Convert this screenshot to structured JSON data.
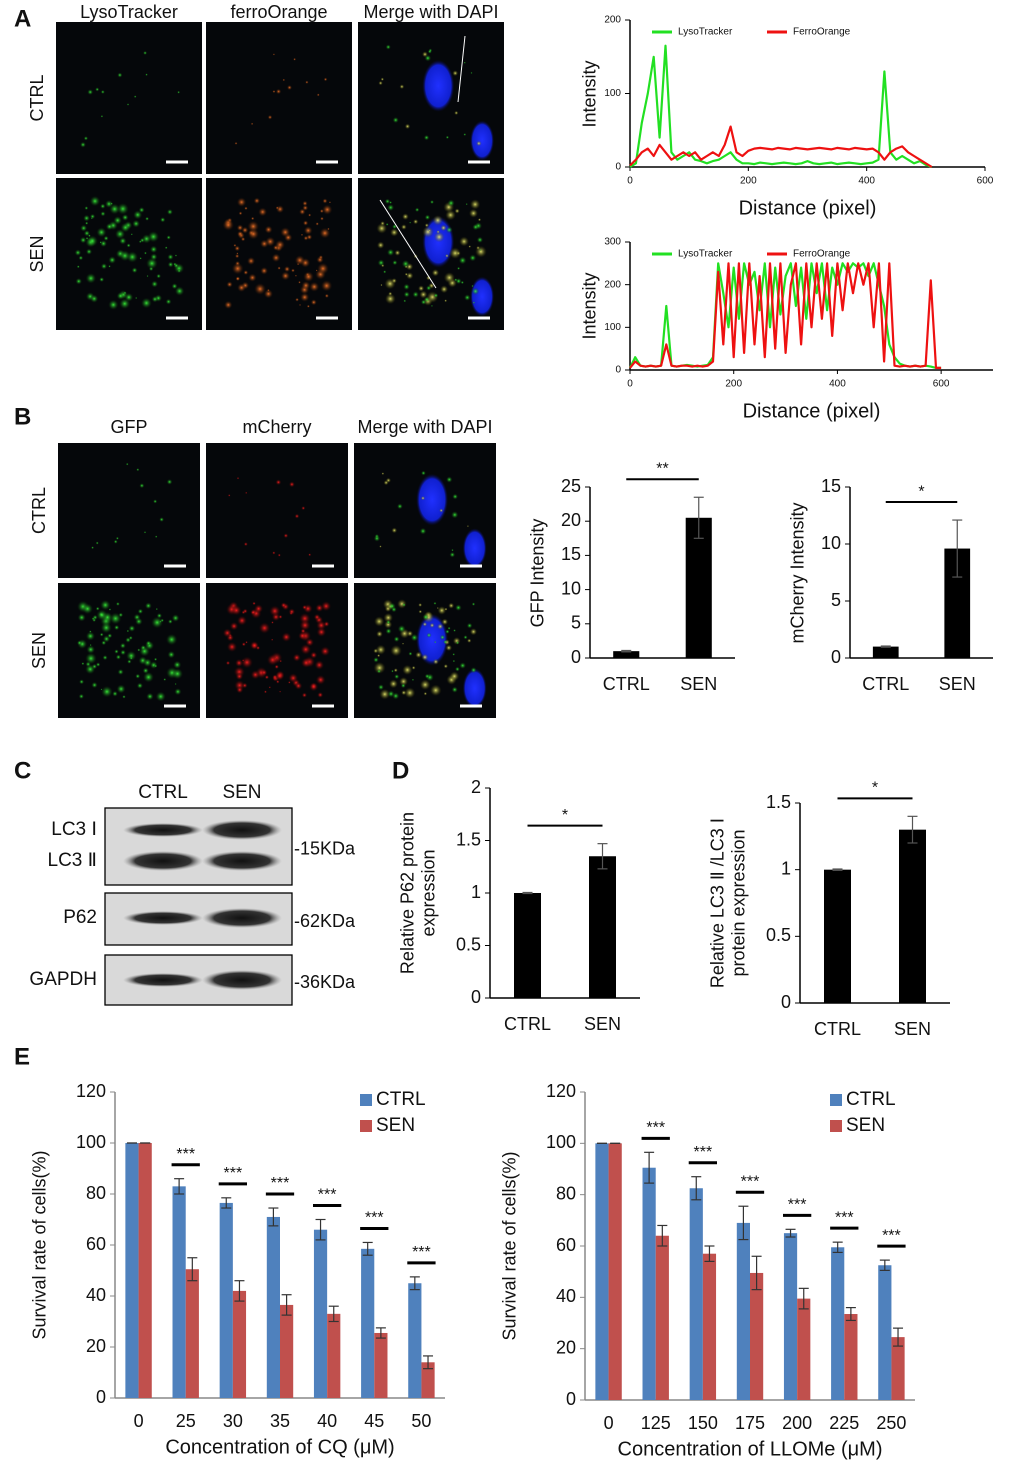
{
  "panel_labels": [
    "A",
    "B",
    "C",
    "D",
    "E"
  ],
  "microscopy_a": {
    "columns": [
      "LysoTracker",
      "ferroOrange",
      "Merge with DAPI"
    ],
    "rows": [
      "CTRL",
      "SEN"
    ]
  },
  "microscopy_b": {
    "columns": [
      "GFP",
      "mCherry",
      "Merge with DAPI"
    ],
    "rows": [
      "CTRL",
      "SEN"
    ]
  },
  "western_blot": {
    "lanes": [
      "CTRL",
      "SEN"
    ],
    "blots": [
      {
        "labels": [
          "LC3 Ⅰ",
          "LC3 Ⅱ"
        ],
        "size": "-15KDa"
      },
      {
        "labels": [
          "P62"
        ],
        "size": "-62KDa"
      },
      {
        "labels": [
          "GAPDH"
        ],
        "size": "-36KDa"
      }
    ]
  },
  "chart_data": [
    {
      "type": "line",
      "xlabel": "Distance (pixel)",
      "ylabel": "Intensity",
      "x": [
        0,
        10,
        20,
        30,
        40,
        50,
        60,
        70,
        80,
        90,
        100,
        110,
        120,
        130,
        140,
        150,
        160,
        170,
        180,
        190,
        200,
        210,
        220,
        230,
        240,
        250,
        260,
        270,
        280,
        290,
        300,
        310,
        320,
        330,
        340,
        350,
        360,
        370,
        380,
        390,
        400,
        410,
        420,
        430,
        440,
        450,
        460,
        470,
        480,
        490,
        500,
        510
      ],
      "series": [
        {
          "name": "LysoTracker",
          "color": "#22e022",
          "values": [
            0,
            5,
            60,
            100,
            150,
            40,
            165,
            20,
            10,
            15,
            20,
            10,
            8,
            5,
            8,
            10,
            15,
            20,
            10,
            5,
            5,
            4,
            6,
            5,
            4,
            5,
            6,
            5,
            4,
            5,
            8,
            5,
            4,
            5,
            6,
            4,
            5,
            6,
            5,
            4,
            5,
            6,
            10,
            130,
            20,
            10,
            15,
            10,
            5,
            8,
            3,
            0
          ]
        },
        {
          "name": "FerroOrange",
          "color": "#ee1111",
          "values": [
            2,
            10,
            20,
            25,
            15,
            30,
            20,
            10,
            15,
            20,
            15,
            20,
            10,
            15,
            20,
            15,
            30,
            55,
            20,
            15,
            22,
            25,
            26,
            25,
            24,
            26,
            25,
            24,
            26,
            25,
            24,
            25,
            26,
            25,
            24,
            26,
            25,
            24,
            26,
            25,
            24,
            25,
            20,
            10,
            20,
            25,
            28,
            20,
            15,
            10,
            5,
            0
          ]
        }
      ],
      "xlim": [
        0,
        600
      ],
      "xticks": [
        0,
        200,
        400,
        600
      ],
      "ylim": [
        0,
        200
      ],
      "yticks": [
        0,
        100,
        200
      ]
    },
    {
      "type": "line",
      "xlabel": "Distance (pixel)",
      "ylabel": "Intensity",
      "x": [
        0,
        10,
        20,
        30,
        40,
        50,
        60,
        70,
        80,
        90,
        100,
        110,
        120,
        130,
        140,
        150,
        160,
        170,
        180,
        190,
        200,
        210,
        220,
        230,
        240,
        250,
        260,
        270,
        280,
        290,
        300,
        310,
        320,
        330,
        340,
        350,
        360,
        370,
        380,
        390,
        400,
        410,
        420,
        430,
        440,
        450,
        460,
        470,
        480,
        490,
        500,
        510,
        520,
        530,
        540,
        550,
        560,
        570,
        580,
        590,
        600
      ],
      "series": [
        {
          "name": "LysoTracker",
          "color": "#22e022",
          "values": [
            5,
            30,
            10,
            8,
            10,
            8,
            10,
            150,
            10,
            8,
            10,
            12,
            10,
            8,
            10,
            12,
            30,
            250,
            180,
            100,
            240,
            120,
            250,
            200,
            230,
            140,
            250,
            100,
            240,
            130,
            220,
            250,
            150,
            240,
            120,
            250,
            180,
            250,
            140,
            240,
            200,
            250,
            230,
            250,
            240,
            250,
            220,
            250,
            200,
            150,
            60,
            30,
            15,
            10,
            8,
            10,
            8,
            10,
            8,
            5,
            5
          ]
        },
        {
          "name": "FerroOrange",
          "color": "#ee1111",
          "values": [
            5,
            20,
            10,
            8,
            10,
            8,
            10,
            60,
            10,
            8,
            10,
            10,
            8,
            10,
            8,
            10,
            20,
            230,
            60,
            250,
            30,
            250,
            40,
            250,
            60,
            220,
            30,
            250,
            50,
            250,
            40,
            200,
            250,
            60,
            250,
            100,
            250,
            120,
            250,
            80,
            250,
            140,
            250,
            180,
            250,
            200,
            250,
            100,
            250,
            20,
            250,
            10,
            8,
            10,
            8,
            10,
            8,
            10,
            210,
            5,
            5
          ]
        }
      ],
      "xlim": [
        0,
        700
      ],
      "xticks": [
        0,
        200,
        400,
        600
      ],
      "ylim": [
        0,
        300
      ],
      "yticks": [
        0,
        100,
        200,
        300
      ]
    },
    {
      "type": "bar",
      "ylabel": "GFP Intensity",
      "categories": [
        "CTRL",
        "SEN"
      ],
      "series": [
        {
          "color": "#000000",
          "values": [
            1,
            20.5
          ],
          "errors": [
            0.1,
            3
          ]
        }
      ],
      "ylim": [
        0,
        25
      ],
      "yticks": [
        0,
        5,
        10,
        15,
        20,
        25
      ],
      "significance": "**"
    },
    {
      "type": "bar",
      "ylabel": "mCherry Intensity",
      "categories": [
        "CTRL",
        "SEN"
      ],
      "series": [
        {
          "color": "#000000",
          "values": [
            1,
            9.6
          ],
          "errors": [
            0.05,
            2.5
          ]
        }
      ],
      "ylim": [
        0,
        15
      ],
      "yticks": [
        0,
        5,
        10,
        15
      ],
      "significance": "*"
    },
    {
      "type": "bar",
      "ylabel": "Relative P62 protein expression",
      "categories": [
        "CTRL",
        "SEN"
      ],
      "series": [
        {
          "color": "#000000",
          "values": [
            1,
            1.35
          ],
          "errors": [
            0.005,
            0.12
          ]
        }
      ],
      "ylim": [
        0,
        2
      ],
      "yticks": [
        0,
        0.5,
        1,
        1.5,
        2
      ],
      "significance": "*"
    },
    {
      "type": "bar",
      "ylabel": "Relative LC3 Ⅱ /LC3 Ⅰ protein expression",
      "categories": [
        "CTRL",
        "SEN"
      ],
      "series": [
        {
          "color": "#000000",
          "values": [
            1,
            1.3
          ],
          "errors": [
            0.005,
            0.1
          ]
        }
      ],
      "ylim": [
        0,
        1.5
      ],
      "yticks": [
        0,
        0.5,
        1,
        1.5
      ],
      "significance": "*"
    },
    {
      "type": "bar",
      "xlabel": "Concentration of CQ (μM)",
      "ylabel": "Survival rate of cells(%)",
      "categories": [
        "0",
        "25",
        "30",
        "35",
        "40",
        "45",
        "50"
      ],
      "series": [
        {
          "name": "CTRL",
          "color": "#4f81bd",
          "values": [
            100,
            83,
            76.5,
            71,
            66,
            58.5,
            45
          ],
          "errors": [
            0,
            3,
            2,
            3.5,
            4,
            2.5,
            2.5
          ]
        },
        {
          "name": "SEN",
          "color": "#c0504d",
          "values": [
            100,
            50.5,
            42,
            36.5,
            33,
            25.5,
            14
          ],
          "errors": [
            0,
            4.5,
            4,
            4,
            3,
            2,
            2.5
          ]
        }
      ],
      "ylim": [
        0,
        120
      ],
      "yticks": [
        0,
        20,
        40,
        60,
        80,
        100,
        120
      ],
      "significance": [
        null,
        "***",
        "***",
        "***",
        "***",
        "***",
        "***"
      ]
    },
    {
      "type": "bar",
      "xlabel": "Concentration of LLOMe (μM)",
      "ylabel": "Survival rate of cells(%)",
      "categories": [
        "0",
        "125",
        "150",
        "175",
        "200",
        "225",
        "250"
      ],
      "series": [
        {
          "name": "CTRL",
          "color": "#4f81bd",
          "values": [
            100,
            90.5,
            82.5,
            69,
            65,
            59.5,
            52.5
          ],
          "errors": [
            0,
            6,
            4.5,
            6.5,
            1.5,
            2,
            2
          ]
        },
        {
          "name": "SEN",
          "color": "#c0504d",
          "values": [
            100,
            64,
            57,
            49.5,
            39.5,
            33.5,
            24.5
          ],
          "errors": [
            0,
            4,
            3,
            6.5,
            4,
            2.5,
            3.5
          ]
        }
      ],
      "ylim": [
        0,
        120
      ],
      "yticks": [
        0,
        20,
        40,
        60,
        80,
        100,
        120
      ],
      "significance": [
        null,
        "***",
        "***",
        "***",
        "***",
        "***",
        "***"
      ]
    }
  ]
}
